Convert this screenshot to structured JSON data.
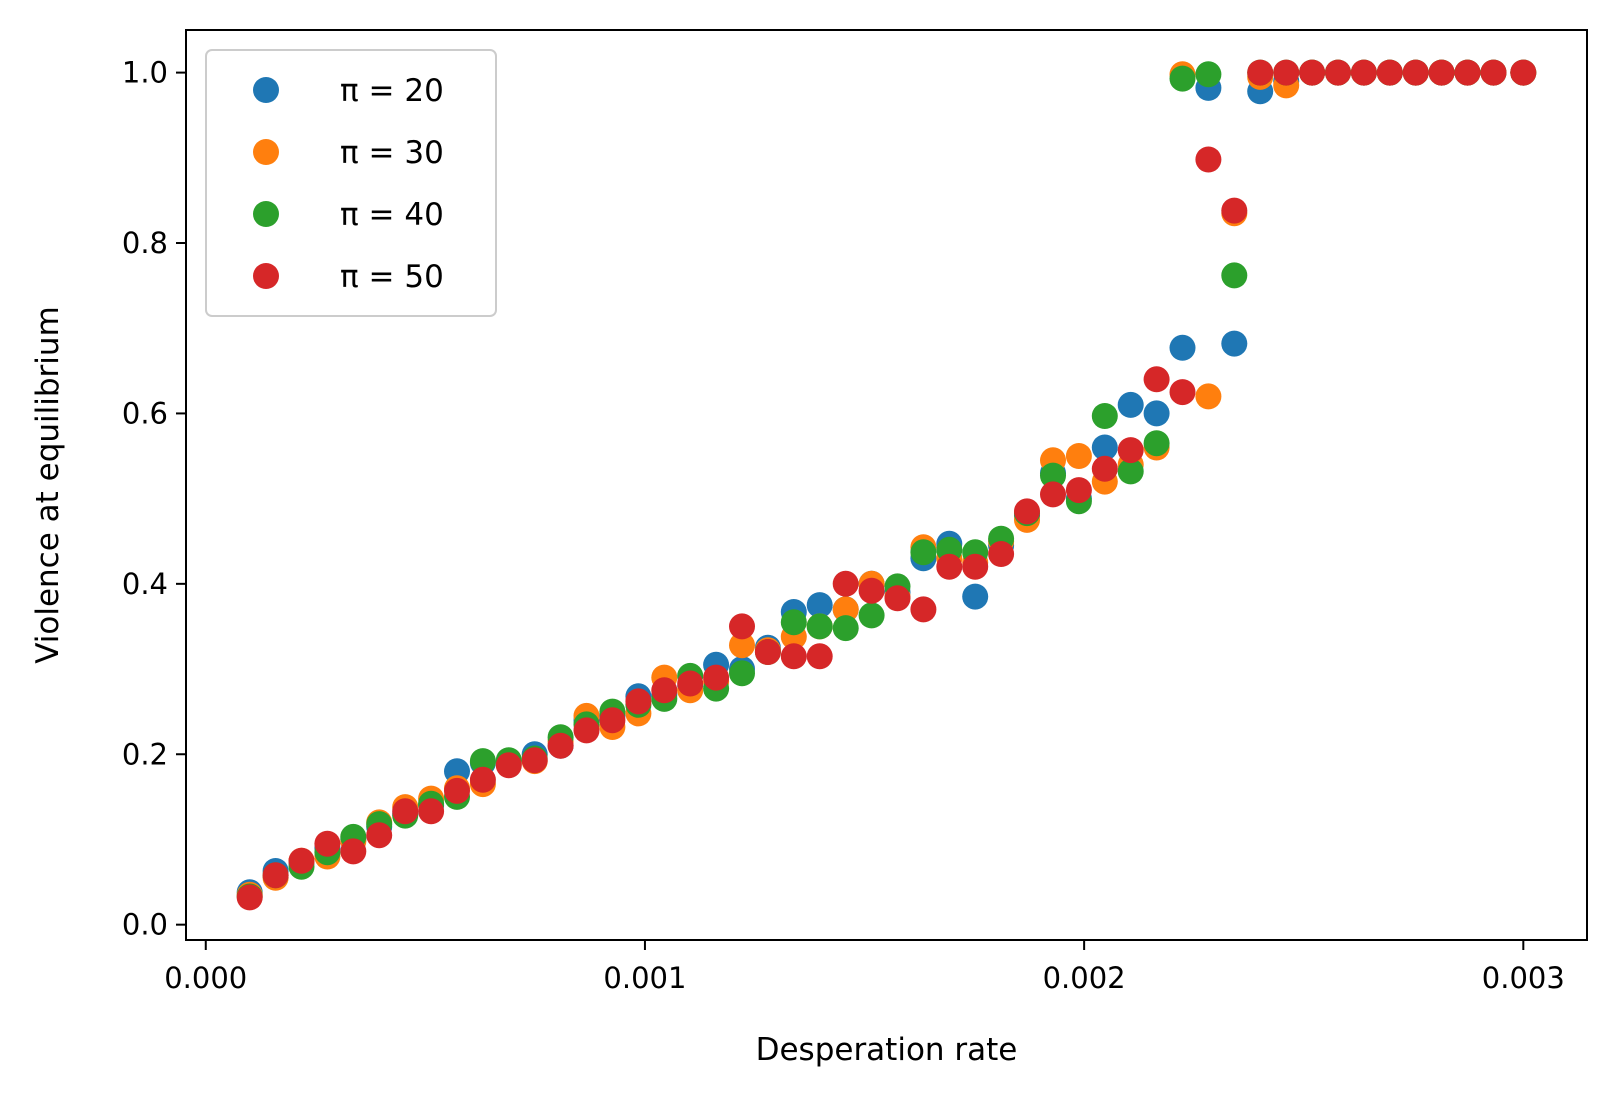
{
  "chart_data": {
    "type": "scatter",
    "title": "",
    "xlabel": "Desperation rate",
    "ylabel": "Violence at equilibrium",
    "xlim": [
      -4.5e-05,
      0.003145
    ],
    "ylim": [
      -0.018,
      1.05
    ],
    "xticks": [
      0.0,
      0.001,
      0.002,
      0.003
    ],
    "xtick_labels": [
      "0.000",
      "0.001",
      "0.002",
      "0.003"
    ],
    "yticks": [
      0.0,
      0.2,
      0.4,
      0.6,
      0.8,
      1.0
    ],
    "ytick_labels": [
      "0.0",
      "0.2",
      "0.4",
      "0.6",
      "0.8",
      "1.0"
    ],
    "grid": false,
    "legend_position": "top-left",
    "x": [
      0.0001,
      0.000159,
      0.000218,
      0.000277,
      0.000336,
      0.000395,
      0.000454,
      0.000513,
      0.000572,
      0.000631,
      0.00069,
      0.000749,
      0.000808,
      0.000867,
      0.000926,
      0.000985,
      0.001044,
      0.001103,
      0.001162,
      0.001221,
      0.00128,
      0.001339,
      0.001398,
      0.001457,
      0.001516,
      0.001575,
      0.001634,
      0.001693,
      0.001752,
      0.001811,
      0.00187,
      0.001929,
      0.001988,
      0.002047,
      0.002106,
      0.002165,
      0.002224,
      0.002283,
      0.002342,
      0.002401,
      0.00246,
      0.002519,
      0.002578,
      0.002637,
      0.002696,
      0.002755,
      0.002814,
      0.002873,
      0.002932,
      0.003
    ],
    "series": [
      {
        "name": "π = 20",
        "color": "#1f77b4",
        "values": [
          0.038,
          0.063,
          0.073,
          0.09,
          0.1,
          0.115,
          0.13,
          0.14,
          0.18,
          0.19,
          0.19,
          0.2,
          0.21,
          0.24,
          0.245,
          0.268,
          0.27,
          0.28,
          0.305,
          0.3,
          0.325,
          0.367,
          0.375,
          0.37,
          0.4,
          0.39,
          0.43,
          0.447,
          0.385,
          0.445,
          0.48,
          0.53,
          0.5,
          0.56,
          0.61,
          0.6,
          0.677,
          0.982,
          0.682,
          0.978,
          0.99,
          1.0,
          1.0,
          1.0,
          1.0,
          1.0,
          1.0,
          1.0,
          1.0,
          1.0
        ]
      },
      {
        "name": "π = 30",
        "color": "#ff7f0e",
        "values": [
          0.035,
          0.055,
          0.075,
          0.08,
          0.098,
          0.12,
          0.138,
          0.148,
          0.16,
          0.165,
          0.19,
          0.192,
          0.215,
          0.245,
          0.232,
          0.248,
          0.29,
          0.275,
          0.285,
          0.328,
          0.322,
          0.338,
          0.35,
          0.37,
          0.4,
          0.385,
          0.443,
          0.43,
          0.425,
          0.45,
          0.475,
          0.545,
          0.55,
          0.52,
          0.54,
          0.56,
          0.998,
          0.62,
          0.835,
          0.995,
          0.985,
          1.0,
          1.0,
          1.0,
          1.0,
          1.0,
          1.0,
          1.0,
          1.0,
          1.0
        ]
      },
      {
        "name": "π = 40",
        "color": "#2ca02c",
        "values": [
          0.033,
          0.058,
          0.068,
          0.085,
          0.103,
          0.118,
          0.128,
          0.142,
          0.15,
          0.192,
          0.193,
          0.195,
          0.22,
          0.235,
          0.25,
          0.258,
          0.265,
          0.292,
          0.277,
          0.295,
          0.32,
          0.355,
          0.35,
          0.348,
          0.363,
          0.397,
          0.437,
          0.44,
          0.437,
          0.453,
          0.483,
          0.527,
          0.497,
          0.597,
          0.532,
          0.565,
          0.993,
          0.998,
          0.762,
          1.0,
          1.0,
          1.0,
          1.0,
          1.0,
          1.0,
          1.0,
          1.0,
          1.0,
          1.0,
          1.0
        ]
      },
      {
        "name": "π = 50",
        "color": "#d62728",
        "values": [
          0.032,
          0.058,
          0.075,
          0.095,
          0.086,
          0.105,
          0.133,
          0.133,
          0.157,
          0.17,
          0.187,
          0.193,
          0.21,
          0.228,
          0.24,
          0.262,
          0.275,
          0.283,
          0.29,
          0.35,
          0.32,
          0.315,
          0.315,
          0.4,
          0.392,
          0.383,
          0.37,
          0.42,
          0.42,
          0.435,
          0.485,
          0.505,
          0.51,
          0.535,
          0.557,
          0.64,
          0.625,
          0.898,
          0.838,
          1.0,
          1.0,
          1.0,
          1.0,
          1.0,
          1.0,
          1.0,
          1.0,
          1.0,
          1.0,
          1.0
        ]
      }
    ]
  }
}
